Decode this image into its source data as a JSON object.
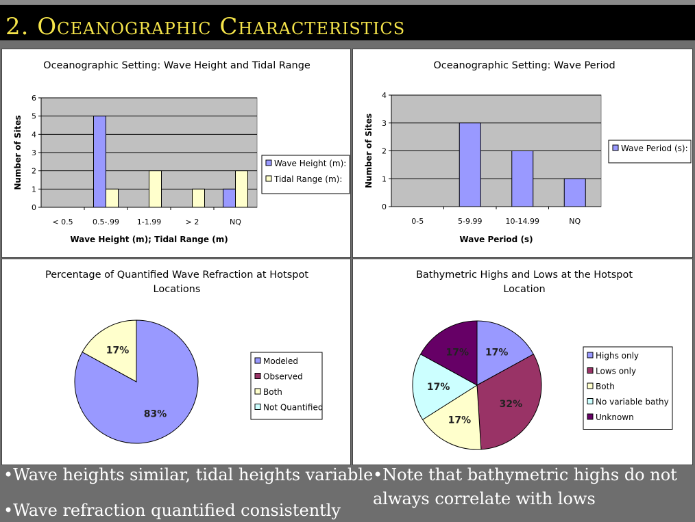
{
  "slide": {
    "title": "2. Oceanographic Characteristics",
    "bullets_left": [
      "•Wave heights similar, tidal heights variable",
      "•Wave refraction quantified consistently"
    ],
    "bullets_right": [
      "•Note that bathymetric highs do not",
      "always correlate with lows"
    ]
  },
  "chart_data": [
    {
      "type": "bar",
      "title": "Oceanographic Setting: Wave Height and Tidal Range",
      "xlabel": "Wave Height (m); Tidal Range (m)",
      "ylabel": "Number of Sites",
      "ylim": [
        0,
        6
      ],
      "yticks": [
        0,
        1,
        2,
        3,
        4,
        5,
        6
      ],
      "categories": [
        "< 0.5",
        "0.5-.99",
        "1-1.99",
        "> 2",
        "NQ"
      ],
      "series": [
        {
          "name": "Wave Height (m):",
          "values": [
            0,
            5,
            0,
            0,
            1
          ],
          "color": "#9999ff"
        },
        {
          "name": "Tidal Range (m):",
          "values": [
            0,
            1,
            2,
            1,
            2
          ],
          "color": "#ffffcc"
        }
      ],
      "plot_bg": "#c0c0c0",
      "legend": "right"
    },
    {
      "type": "bar",
      "title": "Oceanographic Setting: Wave Period",
      "xlabel": "Wave Period (s)",
      "ylabel": "Number of Sites",
      "ylim": [
        0,
        4
      ],
      "yticks": [
        0,
        1,
        2,
        3,
        4
      ],
      "categories": [
        "0-5",
        "5-9.99",
        "10-14.99",
        "NQ"
      ],
      "series": [
        {
          "name": "Wave Period (s):",
          "values": [
            0,
            3,
            2,
            1
          ],
          "color": "#9999ff"
        }
      ],
      "plot_bg": "#c0c0c0",
      "legend": "right"
    },
    {
      "type": "pie",
      "title": [
        "Percentage of Quantified Wave Refraction at Hotspot",
        "Locations"
      ],
      "slices": [
        {
          "label": "Modeled",
          "value": 83,
          "color": "#9999ff",
          "text": "83%"
        },
        {
          "label": "Observed",
          "value": 0,
          "color": "#993366",
          "text": ""
        },
        {
          "label": "Both",
          "value": 17,
          "color": "#ffffcc",
          "text": "17%"
        },
        {
          "label": "Not Quantified",
          "value": 0,
          "color": "#ccffff",
          "text": ""
        }
      ],
      "legend": "right"
    },
    {
      "type": "pie",
      "title": [
        "Bathymetric Highs and Lows at the Hotspot",
        "Location"
      ],
      "slices": [
        {
          "label": "Highs only",
          "value": 17,
          "color": "#9999ff",
          "text": "17%"
        },
        {
          "label": "Lows only",
          "value": 32,
          "color": "#993366",
          "text": "32%"
        },
        {
          "label": "Both",
          "value": 17,
          "color": "#ffffcc",
          "text": "17%"
        },
        {
          "label": "No variable bathy",
          "value": 17,
          "color": "#ccffff",
          "text": "17%"
        },
        {
          "label": "Unknown",
          "value": 17,
          "color": "#660066",
          "text": "17%"
        }
      ],
      "legend": "right"
    }
  ]
}
